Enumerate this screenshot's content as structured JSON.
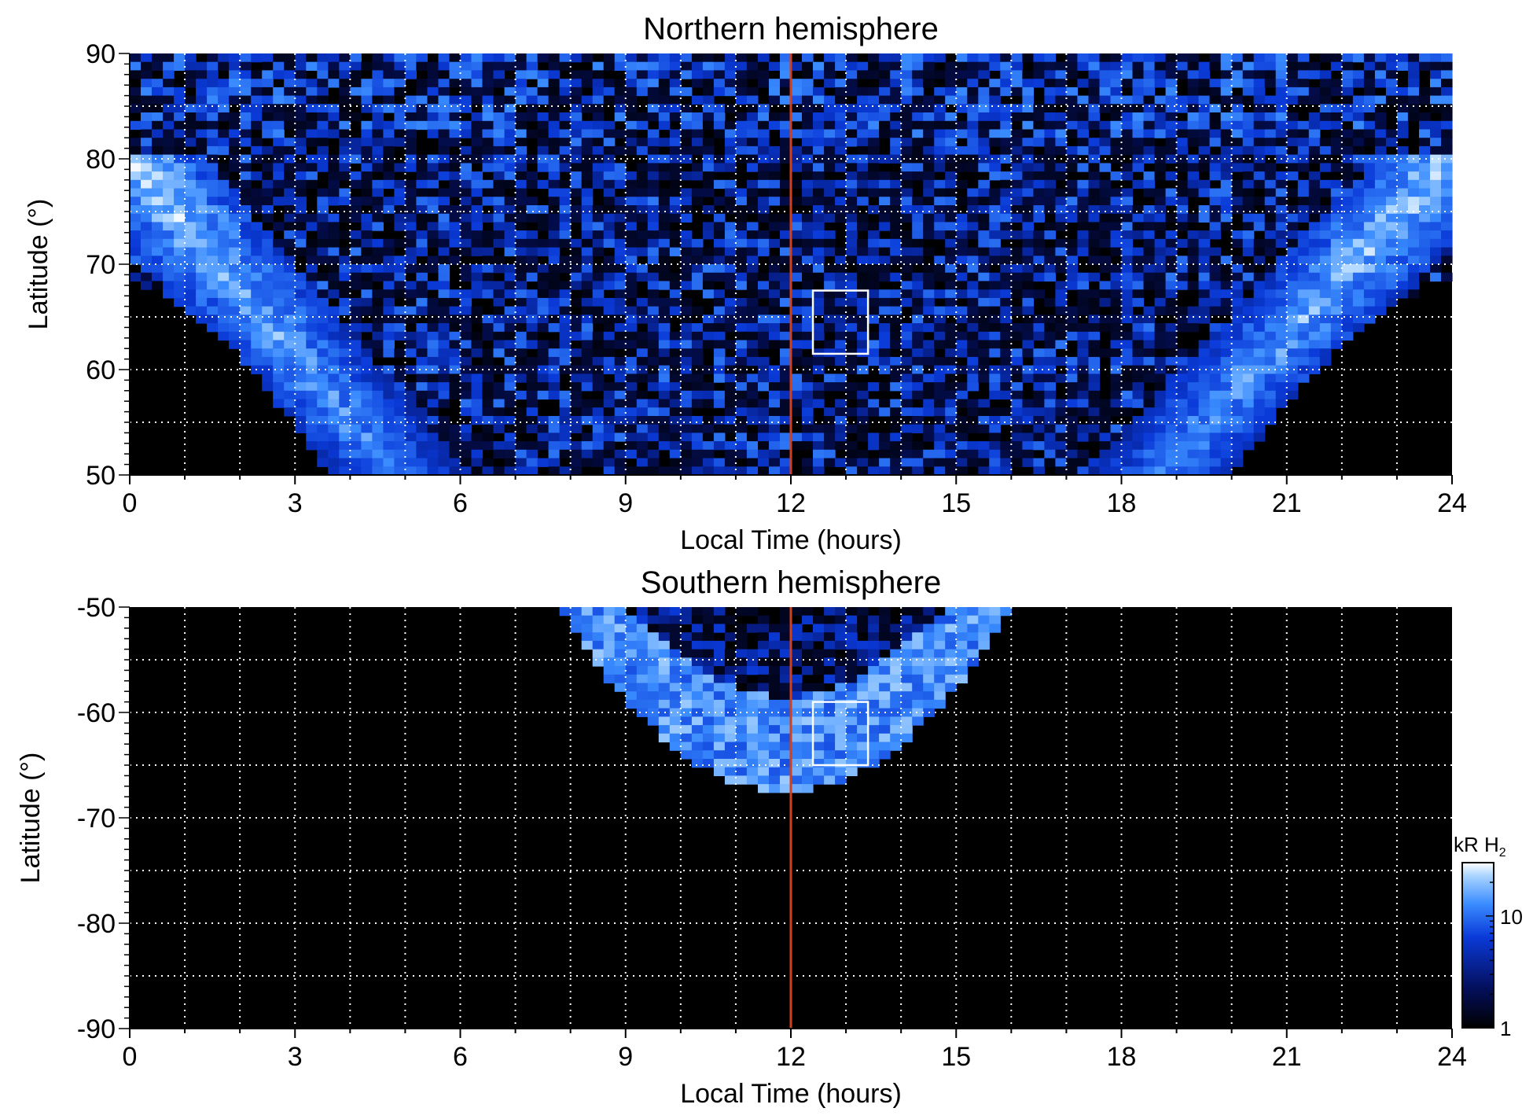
{
  "chart_data": [
    {
      "type": "heatmap",
      "title": "Northern hemisphere",
      "xlabel": "Local Time (hours)",
      "ylabel": "Latitude (°)",
      "xlim": [
        0,
        24
      ],
      "ylim": [
        50,
        90
      ],
      "xticks": [
        0,
        3,
        6,
        9,
        12,
        15,
        18,
        21,
        24
      ],
      "yticks": [
        50,
        60,
        70,
        80,
        90
      ],
      "grid": true,
      "grid_x_step": 1,
      "grid_y_step": 5,
      "reference_line": {
        "x": 12,
        "color": "#d0401c"
      },
      "highlight_box": {
        "x": [
          12.4,
          13.4
        ],
        "y": [
          61.5,
          67.5
        ],
        "color": "#ffffff"
      },
      "features": {
        "auroral_oval": [
          {
            "lt_range": [
              0,
              4.8
            ],
            "lat_at_start": 80,
            "lat_at_end": 50,
            "intensity": "high"
          },
          {
            "lt_range": [
              18.5,
              24
            ],
            "lat_at_start": 50,
            "lat_at_end": 80,
            "intensity": "high"
          }
        ],
        "no_data_regions": [
          {
            "lt_range": [
              0,
              4.2
            ],
            "lat_max_at_start": 69,
            "note": "below oval"
          },
          {
            "lt_range": [
              19.5,
              24
            ],
            "lat_max_at_end": 69,
            "note": "below oval"
          }
        ]
      }
    },
    {
      "type": "heatmap",
      "title": "Southern hemisphere",
      "xlabel": "Local Time (hours)",
      "ylabel": "Latitude (°)",
      "xlim": [
        0,
        24
      ],
      "ylim": [
        -90,
        -50
      ],
      "xticks": [
        0,
        3,
        6,
        9,
        12,
        15,
        18,
        21,
        24
      ],
      "yticks": [
        -50,
        -60,
        -70,
        -80,
        -90
      ],
      "grid": true,
      "grid_x_step": 1,
      "grid_y_step": 5,
      "reference_line": {
        "x": 12,
        "color": "#d0401c"
      },
      "highlight_box": {
        "x": [
          12.4,
          13.4
        ],
        "y": [
          -65,
          -59
        ],
        "color": "#ffffff"
      },
      "features": {
        "auroral_oval": [
          {
            "lt_range": [
              7.8,
              16
            ],
            "lat_center_min": -67.5,
            "intensity": "medium"
          }
        ]
      }
    }
  ],
  "colorbar": {
    "label": "kR H",
    "label_subscript": "2",
    "scale": "log",
    "range": [
      1,
      30
    ],
    "ticks": [
      1,
      10
    ],
    "colors": [
      "#000000",
      "#041060",
      "#0a3ad8",
      "#3a8cff",
      "#a9d4ff",
      "#ffffff"
    ]
  }
}
